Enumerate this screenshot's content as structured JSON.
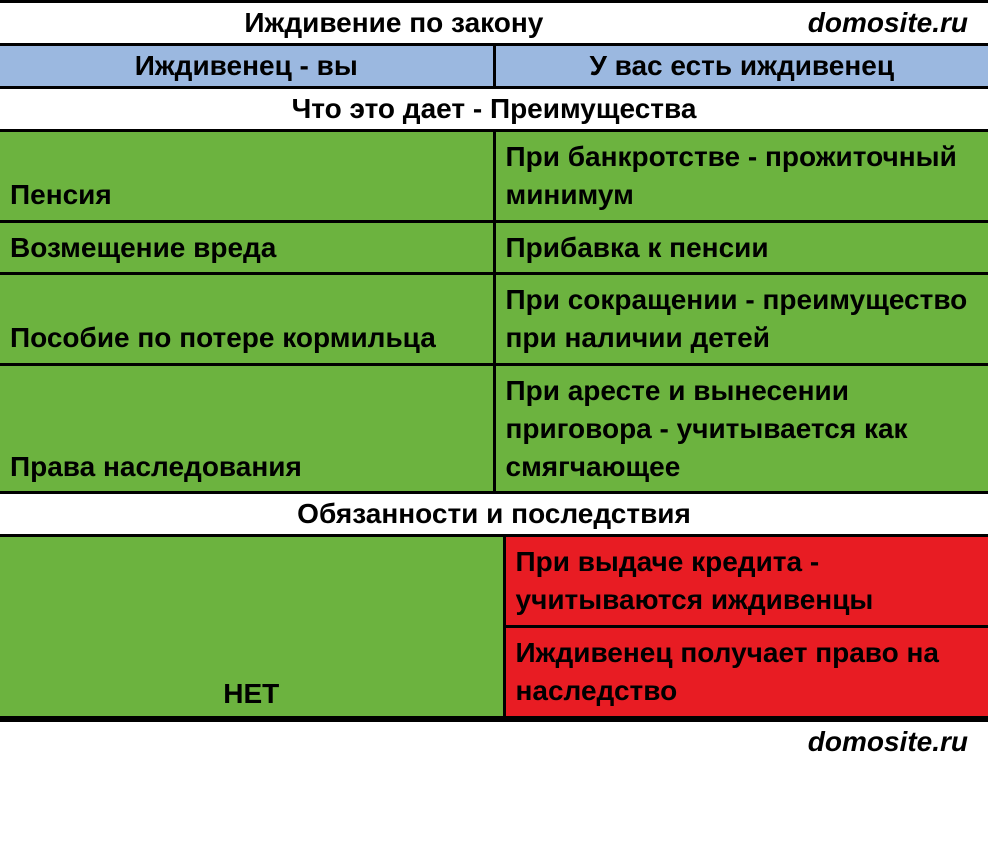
{
  "colors": {
    "green": "#6cb33f",
    "red": "#e81c23",
    "blue": "#9bb8e0",
    "white": "#ffffff",
    "border": "#000000"
  },
  "typography": {
    "fontsize": 28,
    "fontweight": "bold",
    "family": "Arial"
  },
  "header": {
    "title": "Иждивение по закону",
    "site": "domosite.ru"
  },
  "subheader": {
    "left": "Иждивенец - вы",
    "right": "У вас есть иждивенец"
  },
  "section1": {
    "title": "Что это дает - Преимущества"
  },
  "rows": [
    {
      "left": "Пенсия",
      "right": "При банкротстве - прожиточный минимум"
    },
    {
      "left": "Возмещение вреда",
      "right": "Прибавка к пенсии"
    },
    {
      "left": "Пособие по потере кормильца",
      "right": "При сокращении - преимущество при наличии детей"
    },
    {
      "left": "Права наследования",
      "right": "При аресте и вынесении приговора - учитывается как смягчающее"
    }
  ],
  "section2": {
    "title": "Обязанности и последствия"
  },
  "obligations": {
    "left": "НЕТ",
    "right": [
      "При выдаче кредита - учитываются иждивенцы",
      "Иждивенец получает право на наследство"
    ]
  },
  "footer": {
    "site": "domosite.ru"
  }
}
